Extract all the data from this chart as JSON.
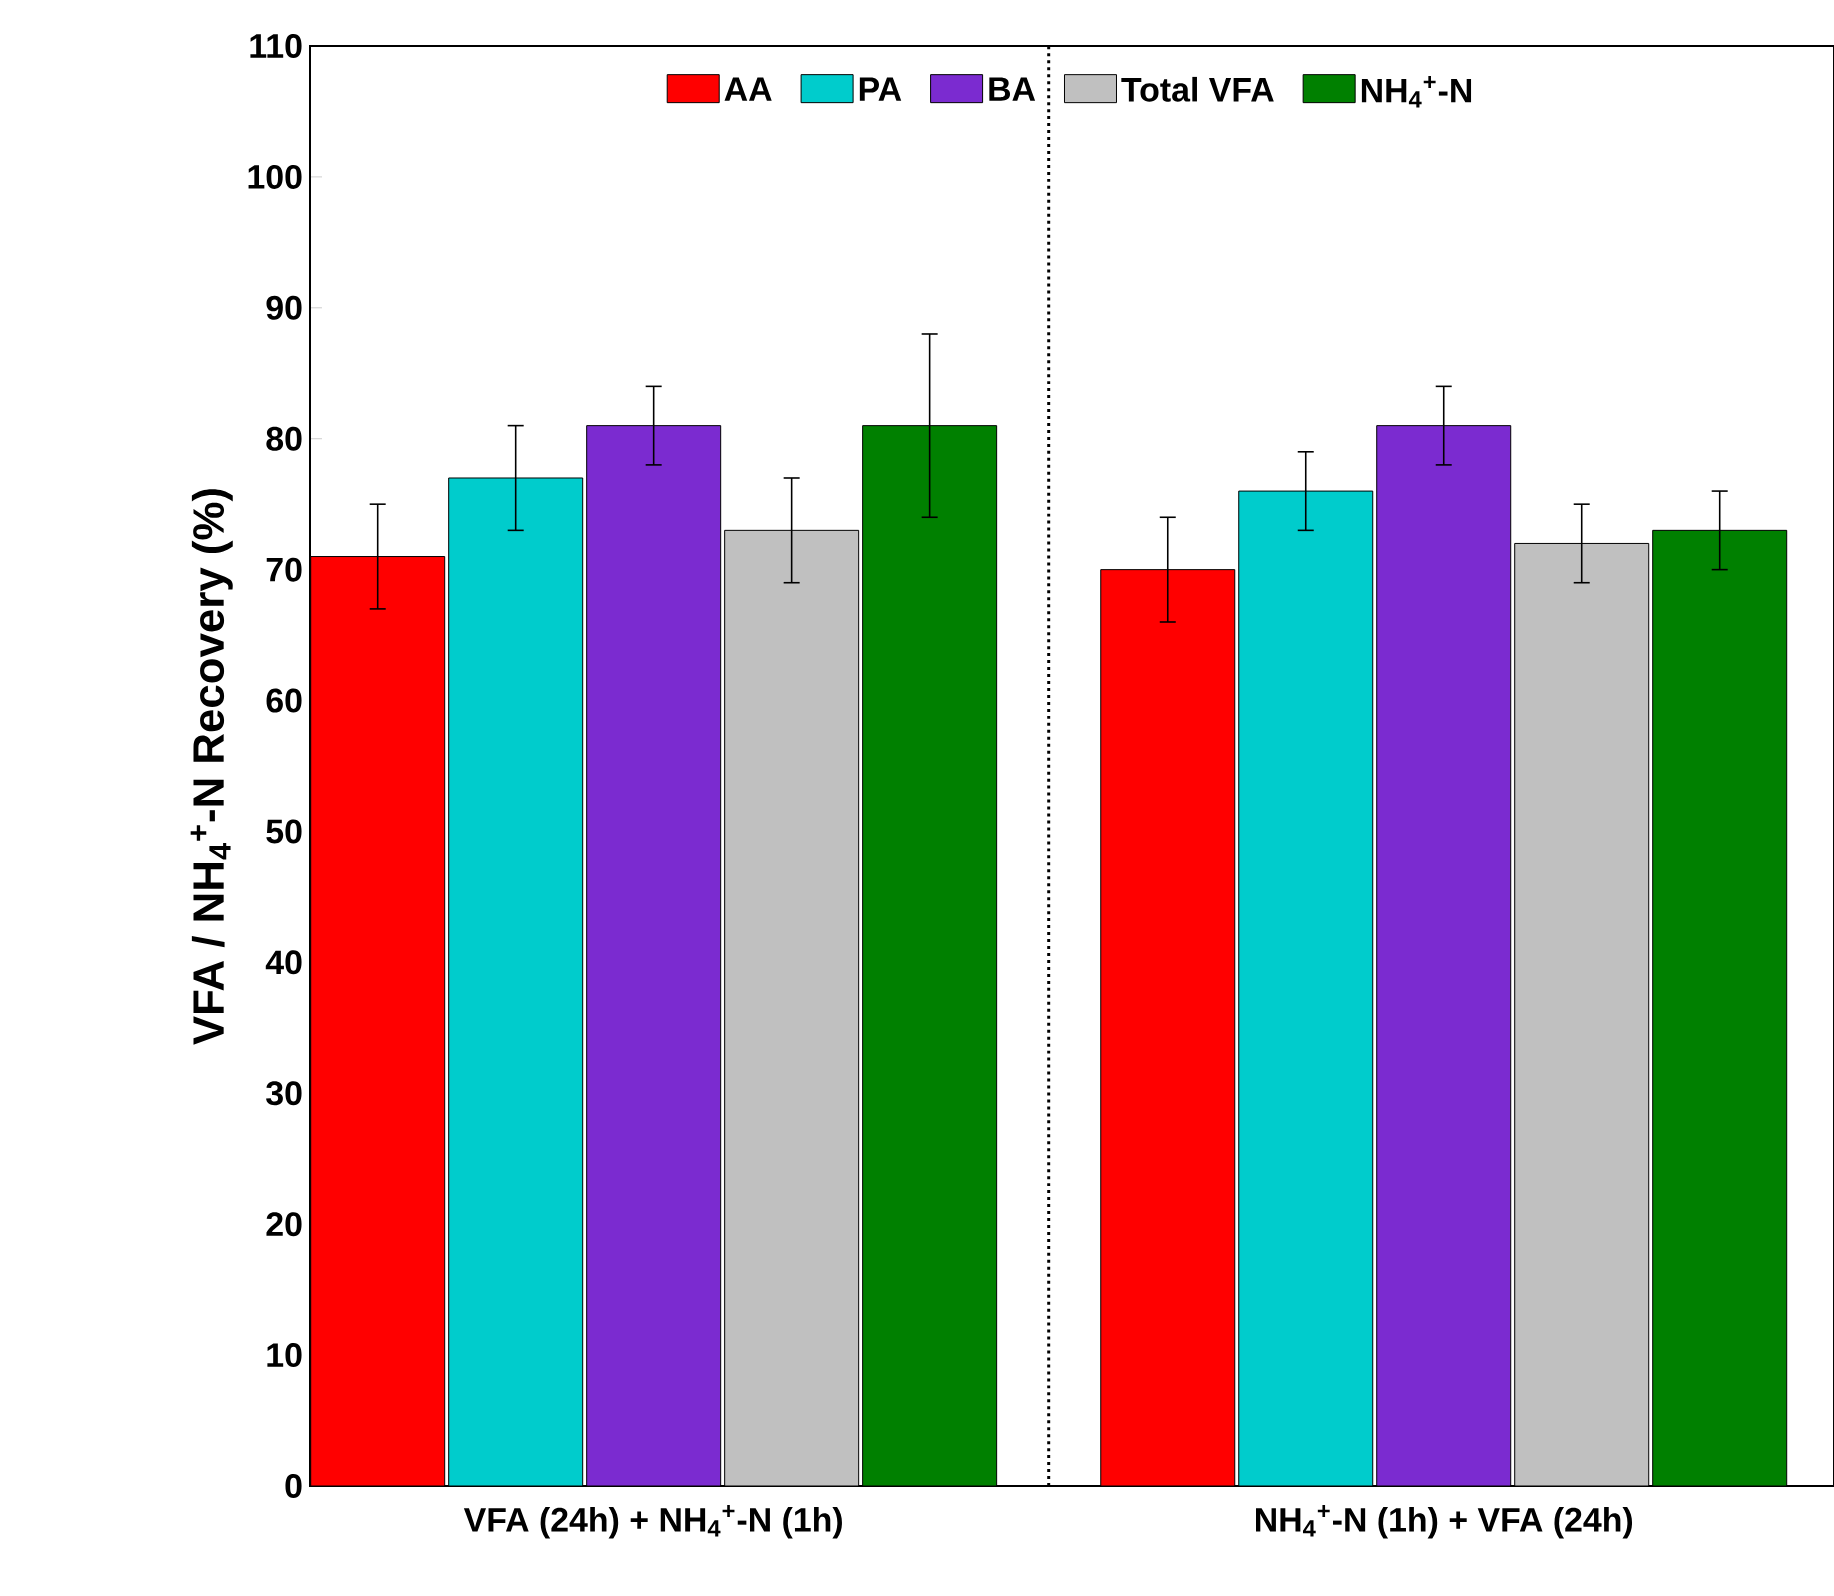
{
  "chart_data": {
    "type": "bar",
    "ylabel": "VFA / NH$_{4}$$^{+}$-N Recovery (%)",
    "categories": [
      "VFA (24h) + NH$_{4}$$^{+}$-N (1h)",
      "NH$_{4}$$^{+}$-N (1h) + VFA (24h)"
    ],
    "series": [
      {
        "name": "AA",
        "color": "#ff0000",
        "values": [
          71,
          70
        ],
        "errors": [
          4,
          4
        ]
      },
      {
        "name": "PA",
        "color": "#00cccc",
        "values": [
          77,
          76
        ],
        "errors": [
          4,
          3
        ]
      },
      {
        "name": "BA",
        "color": "#7b2bd0",
        "values": [
          81,
          81
        ],
        "errors": [
          3,
          3
        ]
      },
      {
        "name": "Total VFA",
        "color": "#c0c0c0",
        "values": [
          73,
          72
        ],
        "errors": [
          4,
          3
        ]
      },
      {
        "name": "NH$_{4}$$^{+}$-N",
        "color": "#008000",
        "values": [
          81,
          73
        ],
        "errors": [
          7,
          3
        ]
      }
    ],
    "ylim": [
      0,
      110
    ],
    "yticks": [
      0,
      10,
      20,
      30,
      40,
      50,
      60,
      70,
      80,
      90,
      100,
      110
    ],
    "legend": "top",
    "grid": false
  }
}
